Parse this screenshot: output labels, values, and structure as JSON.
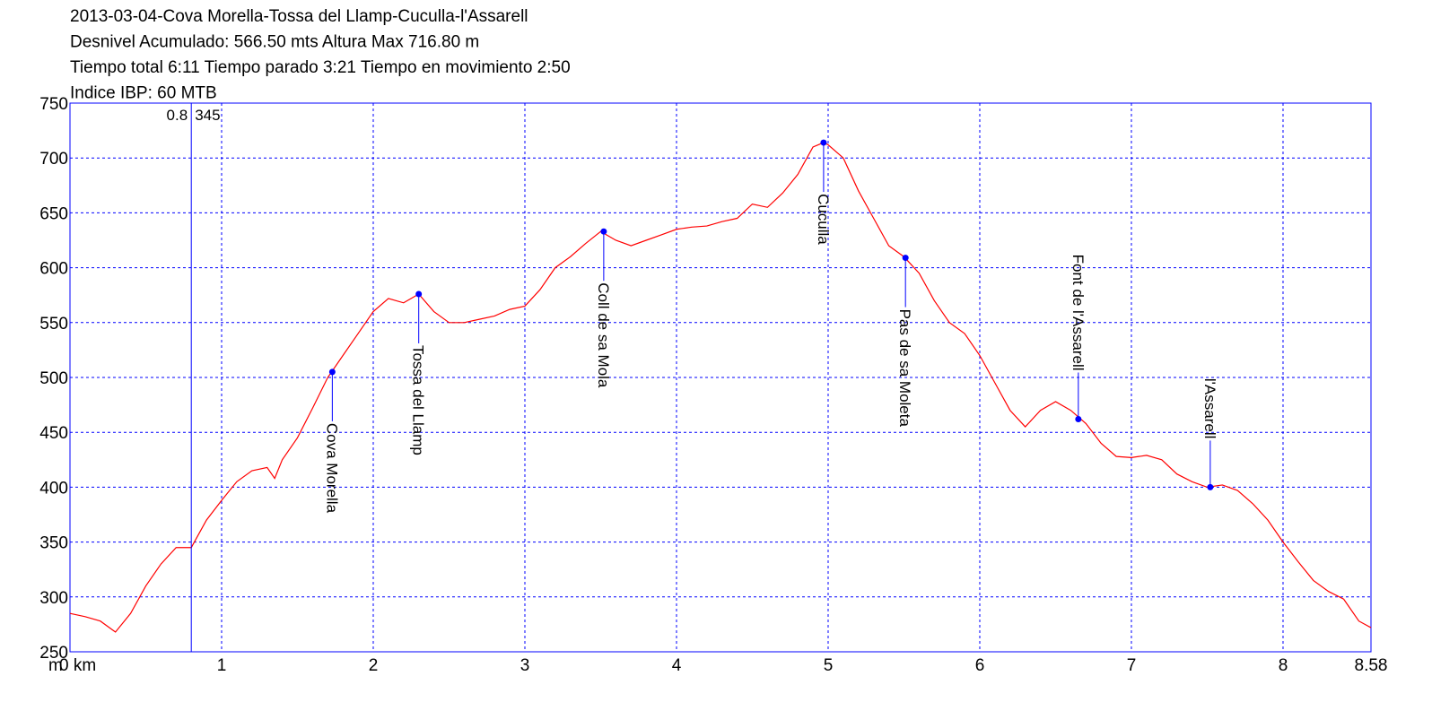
{
  "chart_data": {
    "type": "line",
    "title_lines": [
      "2013-03-04-Cova Morella-Tossa del Llamp-Cuculla-l'Assarell",
      "Desnivel Acumulado: 566.50 mts  Altura Max 716.80 m",
      "Tiempo total 6:11 Tiempo parado 3:21 Tiempo en movimiento 2:50",
      "Indice IBP: 60 MTB"
    ],
    "y_unit": "m",
    "x": [
      0,
      0.1,
      0.2,
      0.3,
      0.4,
      0.5,
      0.6,
      0.7,
      0.8,
      0.9,
      1.0,
      1.1,
      1.2,
      1.3,
      1.35,
      1.4,
      1.5,
      1.6,
      1.7,
      1.8,
      1.9,
      2.0,
      2.1,
      2.2,
      2.3,
      2.4,
      2.5,
      2.6,
      2.7,
      2.8,
      2.9,
      3.0,
      3.1,
      3.2,
      3.3,
      3.4,
      3.5,
      3.6,
      3.7,
      3.8,
      3.9,
      4.0,
      4.1,
      4.2,
      4.3,
      4.4,
      4.5,
      4.6,
      4.7,
      4.8,
      4.9,
      4.97,
      5.0,
      5.1,
      5.2,
      5.3,
      5.4,
      5.5,
      5.6,
      5.7,
      5.8,
      5.9,
      6.0,
      6.1,
      6.2,
      6.3,
      6.4,
      6.5,
      6.6,
      6.7,
      6.8,
      6.9,
      7.0,
      7.1,
      7.2,
      7.3,
      7.4,
      7.5,
      7.6,
      7.7,
      7.8,
      7.9,
      8.0,
      8.1,
      8.2,
      8.3,
      8.4,
      8.5,
      8.58
    ],
    "series": [
      {
        "name": "Altura",
        "color": "#ff0000",
        "values": [
          285,
          282,
          278,
          268,
          285,
          310,
          330,
          345,
          345,
          370,
          388,
          405,
          415,
          418,
          408,
          425,
          445,
          472,
          500,
          520,
          540,
          560,
          572,
          568,
          576,
          560,
          550,
          550,
          553,
          556,
          562,
          565,
          580,
          600,
          610,
          622,
          633,
          625,
          620,
          625,
          630,
          635,
          637,
          638,
          642,
          645,
          658,
          655,
          668,
          685,
          710,
          714,
          712,
          700,
          670,
          645,
          620,
          610,
          595,
          570,
          550,
          540,
          520,
          495,
          470,
          455,
          470,
          478,
          470,
          458,
          440,
          428,
          427,
          429,
          425,
          412,
          405,
          400,
          402,
          397,
          385,
          370,
          350,
          332,
          315,
          305,
          298,
          278,
          272
        ]
      }
    ],
    "waypoints": [
      {
        "name": "Cova Morella",
        "x": 1.73,
        "y": 505
      },
      {
        "name": "Tossa del Llamp",
        "x": 2.3,
        "y": 576
      },
      {
        "name": "Coll de sa Mola",
        "x": 3.52,
        "y": 633
      },
      {
        "name": "Cuculla",
        "x": 4.97,
        "y": 714
      },
      {
        "name": "Pas de sa Moleta",
        "x": 5.51,
        "y": 609
      },
      {
        "name": "Font de l'Assarell",
        "x": 6.65,
        "y": 462
      },
      {
        "name": "l'Assarell",
        "x": 7.52,
        "y": 400
      }
    ],
    "cursor": {
      "x": 0.8,
      "elevation": 345
    },
    "xlim": [
      0,
      8.58
    ],
    "ylim": [
      250,
      750
    ],
    "xticks": [
      {
        "value": 0,
        "label": "0 km"
      },
      1,
      2,
      3,
      4,
      5,
      6,
      7,
      8,
      8.58
    ],
    "yticks": [
      250,
      300,
      350,
      400,
      450,
      500,
      550,
      600,
      650,
      700,
      750
    ],
    "grid": true,
    "frame_color": "#0000ff",
    "marker_color": "#0000ff"
  }
}
